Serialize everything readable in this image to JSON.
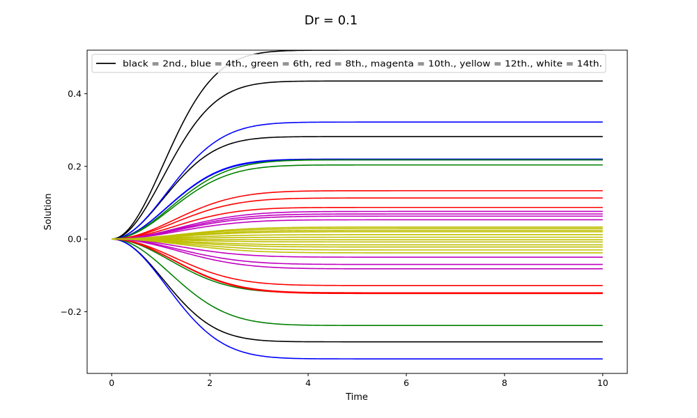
{
  "chart_data": {
    "type": "line",
    "title": "Dr = 0.1",
    "xlabel": "Time",
    "ylabel": "Solution",
    "xlim": [
      -0.5,
      10.5
    ],
    "ylim": [
      -0.37,
      0.52
    ],
    "xticks": [
      0,
      2,
      4,
      6,
      8,
      10
    ],
    "xtick_labels": [
      "0",
      "2",
      "4",
      "6",
      "8",
      "10"
    ],
    "yticks": [
      -0.2,
      0.0,
      0.2,
      0.4
    ],
    "ytick_labels": [
      "−0.2",
      "0.0",
      "0.2",
      "0.4"
    ],
    "grid": false,
    "legend": {
      "location": "top",
      "entries": [
        {
          "label": "black = 2nd., blue = 4th., green = 6th, red = 8th., magenta = 10th., yellow = 12th., white = 14th.",
          "color": "#000000"
        }
      ]
    },
    "series": [
      {
        "color": "#000000",
        "rate": 2.2,
        "values": [
          0.52,
          0.435,
          0.282,
          -0.283
        ]
      },
      {
        "color": "#0000ff",
        "rate": 2.5,
        "values": [
          0.322,
          0.22,
          0.218,
          -0.33
        ]
      },
      {
        "color": "#008000",
        "rate": 2.8,
        "values": [
          0.218,
          0.204,
          -0.148,
          -0.238
        ]
      },
      {
        "color": "#ff0000",
        "rate": 3.2,
        "values": [
          0.133,
          0.113,
          0.087,
          -0.128,
          -0.148,
          -0.15
        ]
      },
      {
        "color": "#bf00bf",
        "rate": 3.6,
        "values": [
          0.076,
          0.069,
          0.063,
          0.053,
          -0.05,
          -0.07,
          -0.082
        ]
      },
      {
        "color": "#bfbf00",
        "rate": 4.0,
        "values": [
          0.033,
          0.029,
          0.024,
          0.02,
          0.012,
          0.005,
          -0.002,
          -0.008,
          -0.016,
          -0.022,
          -0.03,
          -0.038
        ]
      }
    ]
  }
}
